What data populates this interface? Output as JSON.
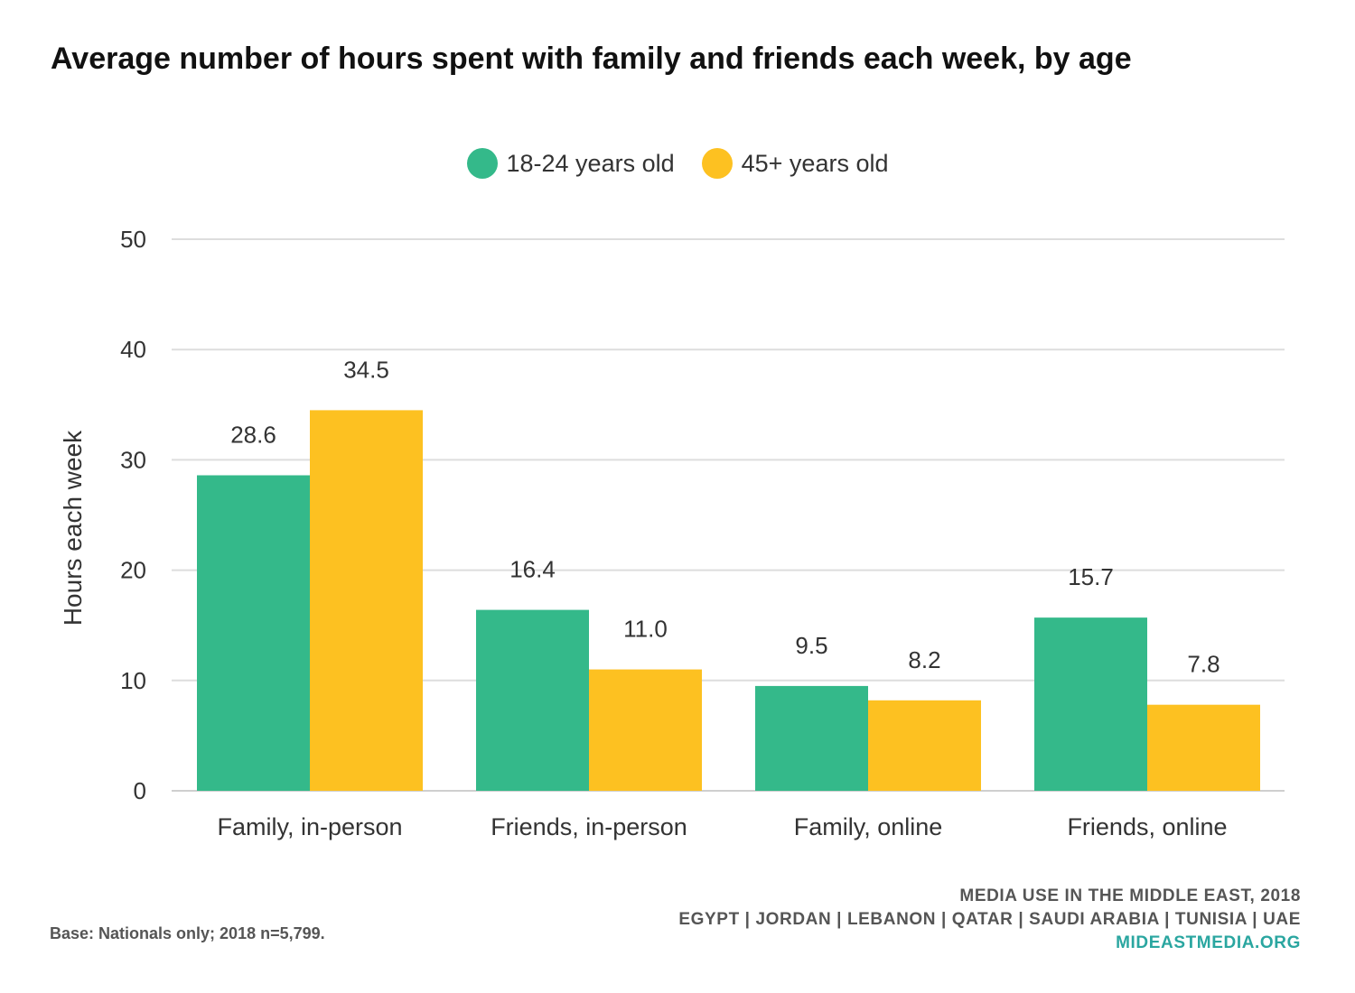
{
  "title": "Average number of hours spent with family and friends each week, by age",
  "legend": [
    {
      "label": "18-24 years old",
      "color": "#34b98a"
    },
    {
      "label": "45+ years old",
      "color": "#fdc121"
    }
  ],
  "chart_data": {
    "type": "bar",
    "title": "Average number of hours spent with family and friends each week, by age",
    "xlabel": "",
    "ylabel": "Hours each week",
    "ylim": [
      0,
      50
    ],
    "yticks": [
      0,
      10,
      20,
      30,
      40,
      50
    ],
    "grid": true,
    "legend_position": "top-center",
    "categories": [
      "Family, in-person",
      "Friends, in-person",
      "Family, online",
      "Friends, online"
    ],
    "series": [
      {
        "name": "18-24 years old",
        "color": "#34b98a",
        "values": [
          28.6,
          16.4,
          9.5,
          15.7
        ],
        "labels": [
          "28.6",
          "16.4",
          "9.5",
          "15.7"
        ]
      },
      {
        "name": "45+ years old",
        "color": "#fdc121",
        "values": [
          34.5,
          11.0,
          8.2,
          7.8
        ],
        "labels": [
          "34.5",
          "11.0",
          "8.2",
          "7.8"
        ]
      }
    ]
  },
  "footer": {
    "base_note": "Base: Nationals only; 2018 n=5,799.",
    "source_line1": "MEDIA USE IN THE MIDDLE EAST, 2018",
    "source_line2": "EGYPT | JORDAN | LEBANON | QATAR | SAUDI ARABIA | TUNISIA | UAE",
    "source_url": "MIDEASTMEDIA.ORG",
    "url_color": "#2aa6a0"
  }
}
